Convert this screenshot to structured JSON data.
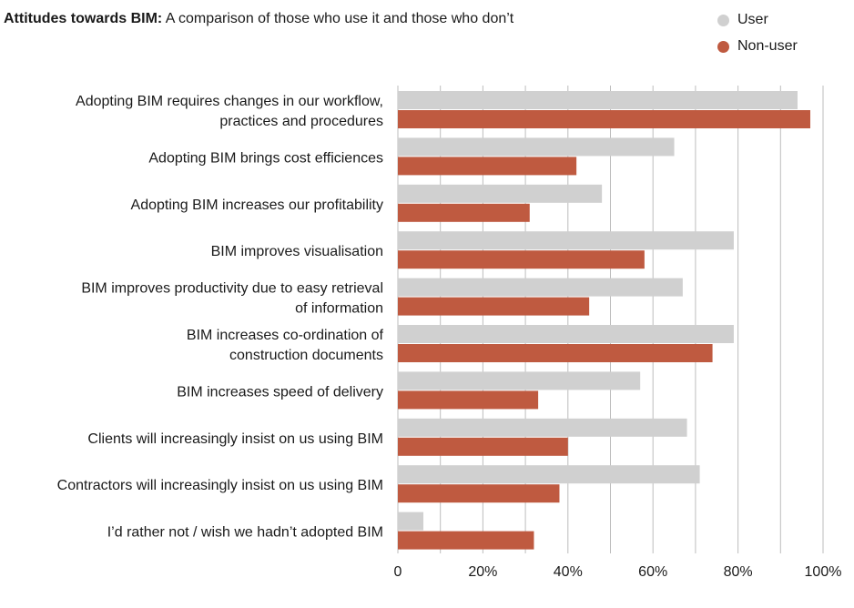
{
  "title": {
    "bold": "Attitudes towards BIM:",
    "rest": "A comparison of those who use it and those who don’t"
  },
  "colors": {
    "user": "#d0d0d0",
    "non_user": "#bf5a40",
    "grid": "#bdbdbd"
  },
  "chart_data": {
    "type": "bar",
    "orientation": "horizontal",
    "categories": [
      [
        "Adopting BIM requires changes in our workflow,",
        "practices and procedures"
      ],
      [
        "Adopting BIM brings cost efficiences"
      ],
      [
        "Adopting BIM increases our profitability"
      ],
      [
        "BIM improves  visualisation"
      ],
      [
        "BIM  improves productivity due to easy retrieval",
        "of information"
      ],
      [
        "BIM increases co-ordination of",
        "construction documents"
      ],
      [
        "BIM increases speed of delivery"
      ],
      [
        "Clients will increasingly insist on us using BIM"
      ],
      [
        "Contractors will increasingly insist on us using BIM"
      ],
      [
        "I’d rather not / wish we hadn’t adopted BIM"
      ]
    ],
    "series": [
      {
        "name": "User",
        "color": "#d0d0d0",
        "values": [
          94,
          65,
          48,
          79,
          67,
          79,
          57,
          68,
          71,
          6
        ]
      },
      {
        "name": "Non-user",
        "color": "#bf5a40",
        "values": [
          97,
          42,
          31,
          58,
          45,
          74,
          33,
          40,
          38,
          32
        ]
      }
    ],
    "xlim": [
      0,
      100
    ],
    "xticks": [
      "0",
      "20%",
      "40%",
      "60%",
      "80%",
      "100%"
    ],
    "grid": true,
    "legend_position": "top-right"
  }
}
